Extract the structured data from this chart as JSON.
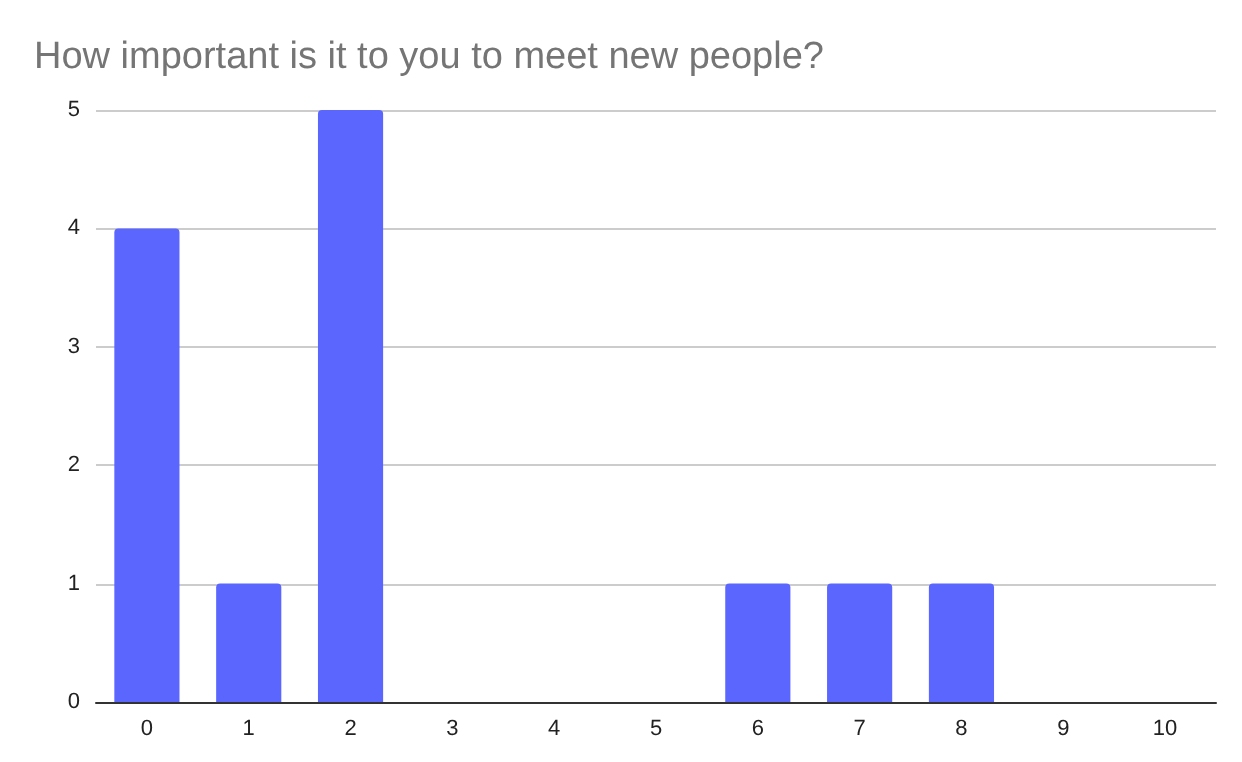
{
  "chart_data": {
    "type": "bar",
    "title": "How important is it to you to meet new people?",
    "categories": [
      "0",
      "1",
      "2",
      "3",
      "4",
      "5",
      "6",
      "7",
      "8",
      "9",
      "10"
    ],
    "values": [
      4,
      1,
      5,
      0,
      0,
      0,
      1,
      1,
      1,
      0,
      0
    ],
    "color": "#5b66ff",
    "ylim": [
      0,
      5
    ],
    "yticks": [
      0,
      1,
      2,
      3,
      4,
      5
    ],
    "grid": "y"
  }
}
